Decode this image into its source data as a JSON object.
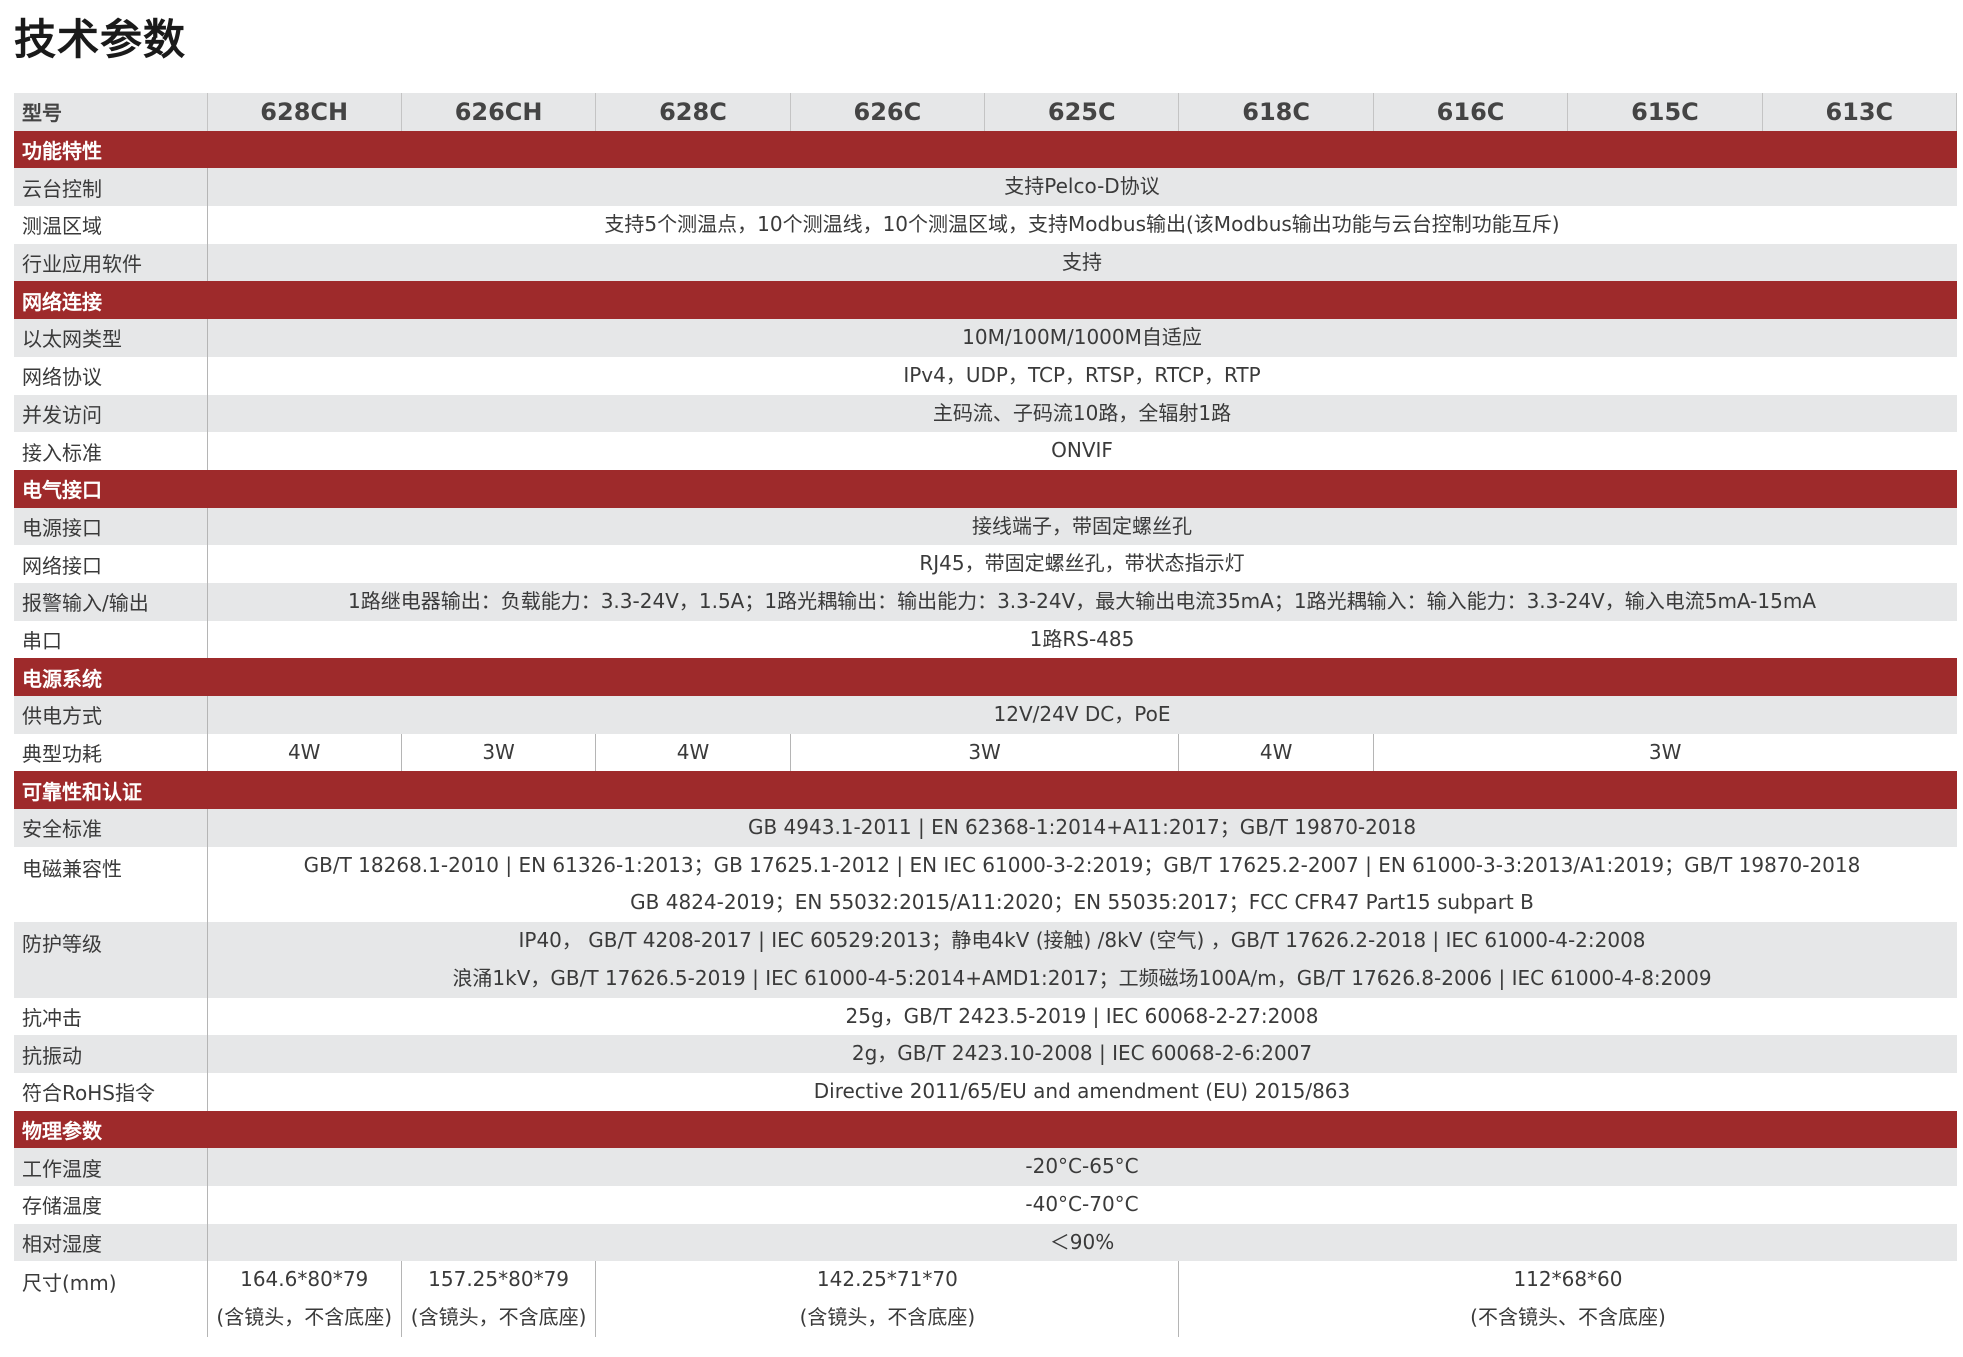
{
  "title": "技术参数",
  "colors": {
    "section_bg": "#9e2a2b",
    "row_gray": "#e6e7e8"
  },
  "header": {
    "label": "型号",
    "models": [
      "628CH",
      "626CH",
      "628C",
      "626C",
      "625C",
      "618C",
      "616C",
      "615C",
      "613C"
    ]
  },
  "rows": [
    {
      "type": "section",
      "label": "功能特性"
    },
    {
      "label": "云台控制",
      "cells": [
        {
          "span": 9,
          "lines": [
            "支持Pelco-D协议"
          ]
        }
      ]
    },
    {
      "label": "测温区域",
      "cells": [
        {
          "span": 9,
          "lines": [
            "支持5个测温点，10个测温线，10个测温区域，支持Modbus输出(该Modbus输出功能与云台控制功能互斥)"
          ]
        }
      ]
    },
    {
      "label": "行业应用软件",
      "cells": [
        {
          "span": 9,
          "lines": [
            "支持"
          ]
        }
      ]
    },
    {
      "type": "section",
      "label": "网络连接"
    },
    {
      "label": "以太网类型",
      "cells": [
        {
          "span": 9,
          "lines": [
            "10M/100M/1000M自适应"
          ]
        }
      ]
    },
    {
      "label": "网络协议",
      "cells": [
        {
          "span": 9,
          "lines": [
            "IPv4，UDP，TCP，RTSP，RTCP，RTP"
          ]
        }
      ]
    },
    {
      "label": "并发访问",
      "cells": [
        {
          "span": 9,
          "lines": [
            "主码流、子码流10路，全辐射1路"
          ]
        }
      ]
    },
    {
      "label": "接入标准",
      "cells": [
        {
          "span": 9,
          "lines": [
            "ONVIF"
          ]
        }
      ]
    },
    {
      "type": "section",
      "label": "电气接口"
    },
    {
      "label": "电源接口",
      "cells": [
        {
          "span": 9,
          "lines": [
            "接线端子，带固定螺丝孔"
          ]
        }
      ]
    },
    {
      "label": "网络接口",
      "cells": [
        {
          "span": 9,
          "lines": [
            "RJ45，带固定螺丝孔，带状态指示灯"
          ]
        }
      ]
    },
    {
      "label": "报警输入/输出",
      "cells": [
        {
          "span": 9,
          "lines": [
            "1路继电器输出：负载能力：3.3-24V，1.5A；1路光耦输出：输出能力：3.3-24V，最大输出电流35mA；1路光耦输入：输入能力：3.3-24V，输入电流5mA-15mA"
          ]
        }
      ]
    },
    {
      "label": "串口",
      "cells": [
        {
          "span": 9,
          "lines": [
            "1路RS-485"
          ]
        }
      ]
    },
    {
      "type": "section",
      "label": "电源系统"
    },
    {
      "label": "供电方式",
      "cells": [
        {
          "span": 9,
          "lines": [
            "12V/24V DC，PoE"
          ]
        }
      ]
    },
    {
      "label": "典型功耗",
      "cells": [
        {
          "span": 1,
          "lines": [
            "4W"
          ]
        },
        {
          "span": 1,
          "lines": [
            "3W"
          ]
        },
        {
          "span": 1,
          "lines": [
            "4W"
          ]
        },
        {
          "span": 2,
          "lines": [
            "3W"
          ]
        },
        {
          "span": 1,
          "lines": [
            "4W"
          ]
        },
        {
          "span": 3,
          "lines": [
            "3W"
          ]
        }
      ]
    },
    {
      "type": "section",
      "label": "可靠性和认证"
    },
    {
      "label": "安全标准",
      "cells": [
        {
          "span": 9,
          "lines": [
            "GB 4943.1-2011 | EN 62368-1:2014+A11:2017；GB/T 19870-2018"
          ]
        }
      ]
    },
    {
      "label": "电磁兼容性",
      "cells": [
        {
          "span": 9,
          "lines": [
            "GB/T 18268.1-2010 | EN 61326-1:2013；GB 17625.1-2012 | EN IEC 61000-3-2:2019；GB/T 17625.2-2007 | EN 61000-3-3:2013/A1:2019；GB/T 19870-2018",
            "GB 4824-2019；EN 55032:2015/A11:2020；EN 55035:2017；FCC CFR47 Part15 subpart B"
          ]
        }
      ]
    },
    {
      "label": "防护等级",
      "cells": [
        {
          "span": 9,
          "lines": [
            "IP40， GB/T 4208-2017 | IEC 60529:2013；静电4kV (接触) /8kV (空气) ，GB/T 17626.2-2018 | IEC 61000-4-2:2008",
            "浪涌1kV，GB/T 17626.5-2019 | IEC 61000-4-5:2014+AMD1:2017；工频磁场100A/m，GB/T 17626.8-2006 | IEC 61000-4-8:2009"
          ]
        }
      ]
    },
    {
      "label": "抗冲击",
      "cells": [
        {
          "span": 9,
          "lines": [
            "25g，GB/T 2423.5-2019 | IEC 60068-2-27:2008"
          ]
        }
      ]
    },
    {
      "label": "抗振动",
      "cells": [
        {
          "span": 9,
          "lines": [
            "2g，GB/T 2423.10-2008 | IEC 60068-2-6:2007"
          ]
        }
      ]
    },
    {
      "label": "符合RoHS指令",
      "cells": [
        {
          "span": 9,
          "lines": [
            "Directive 2011/65/EU and amendment (EU) 2015/863"
          ]
        }
      ]
    },
    {
      "type": "section",
      "label": "物理参数"
    },
    {
      "label": "工作温度",
      "cells": [
        {
          "span": 9,
          "lines": [
            "-20°C-65°C"
          ]
        }
      ]
    },
    {
      "label": "存储温度",
      "cells": [
        {
          "span": 9,
          "lines": [
            "-40°C-70°C"
          ]
        }
      ]
    },
    {
      "label": "相对湿度",
      "cells": [
        {
          "span": 9,
          "lines": [
            "＜90%"
          ]
        }
      ]
    },
    {
      "label": "尺寸(mm)",
      "cells": [
        {
          "span": 1,
          "lines": [
            "164.6*80*79",
            "(含镜头，不含底座)"
          ]
        },
        {
          "span": 1,
          "lines": [
            "157.25*80*79",
            "(含镜头，不含底座)"
          ]
        },
        {
          "span": 3,
          "lines": [
            "142.25*71*70",
            "(含镜头，不含底座)"
          ]
        },
        {
          "span": 4,
          "lines": [
            "112*68*60",
            "(不含镜头、不含底座)"
          ]
        }
      ]
    }
  ]
}
